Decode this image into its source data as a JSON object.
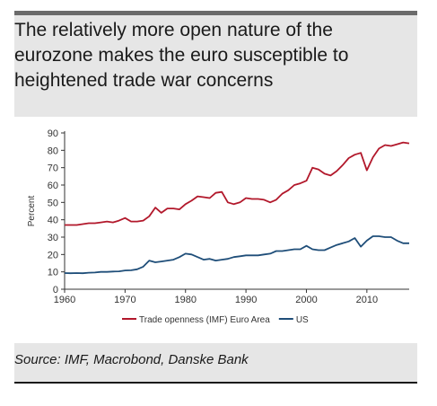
{
  "title": "The relatively more open nature of the eurozone makes the euro susceptible to heightened trade war concerns",
  "source": "Source: IMF, Macrobond, Danske Bank",
  "colors": {
    "euro_area": "#b2182b",
    "us": "#1f4e79",
    "panel": "#e6e6e6"
  },
  "chart_data": {
    "type": "line",
    "title": "",
    "xlabel": "",
    "ylabel": "Percent",
    "xlim": [
      1960,
      2017
    ],
    "ylim": [
      0,
      90
    ],
    "xticks": [
      1960,
      1970,
      1980,
      1990,
      2000,
      2010
    ],
    "yticks": [
      0,
      10,
      20,
      30,
      40,
      50,
      60,
      70,
      80,
      90
    ],
    "grid": false,
    "legend_position": "bottom",
    "series": [
      {
        "name": "Trade openness (IMF) Euro Area",
        "color": "#b2182b",
        "x": [
          1960,
          1961,
          1962,
          1963,
          1964,
          1965,
          1966,
          1967,
          1968,
          1969,
          1970,
          1971,
          1972,
          1973,
          1974,
          1975,
          1976,
          1977,
          1978,
          1979,
          1980,
          1981,
          1982,
          1983,
          1984,
          1985,
          1986,
          1987,
          1988,
          1989,
          1990,
          1991,
          1992,
          1993,
          1994,
          1995,
          1996,
          1997,
          1998,
          1999,
          2000,
          2001,
          2002,
          2003,
          2004,
          2005,
          2006,
          2007,
          2008,
          2009,
          2010,
          2011,
          2012,
          2013,
          2014,
          2015,
          2016,
          2017
        ],
        "y": [
          37,
          37,
          37,
          37.5,
          38,
          38,
          38.5,
          39,
          38.5,
          39.5,
          41,
          39,
          39,
          39.5,
          42,
          47,
          44,
          46.5,
          46.5,
          46,
          49,
          51,
          53.5,
          53,
          52.5,
          55.5,
          56,
          50,
          49,
          50,
          52.5,
          52,
          52,
          51.5,
          50,
          51.5,
          55,
          57,
          60,
          61,
          62.5,
          70,
          69,
          66.5,
          65.5,
          68,
          71.5,
          75.5,
          77.5,
          78.5,
          68.5,
          76,
          81,
          83,
          82.5,
          83.5,
          84.5,
          84
        ]
      },
      {
        "name": "US",
        "color": "#1f4e79",
        "x": [
          1960,
          1961,
          1962,
          1963,
          1964,
          1965,
          1966,
          1967,
          1968,
          1969,
          1970,
          1971,
          1972,
          1973,
          1974,
          1975,
          1976,
          1977,
          1978,
          1979,
          1980,
          1981,
          1982,
          1983,
          1984,
          1985,
          1986,
          1987,
          1988,
          1989,
          1990,
          1991,
          1992,
          1993,
          1994,
          1995,
          1996,
          1997,
          1998,
          1999,
          2000,
          2001,
          2002,
          2003,
          2004,
          2005,
          2006,
          2007,
          2008,
          2009,
          2010,
          2011,
          2012,
          2013,
          2014,
          2015,
          2016,
          2017
        ],
        "y": [
          9.3,
          9.2,
          9.3,
          9.2,
          9.5,
          9.6,
          10,
          10,
          10.2,
          10.3,
          10.8,
          10.9,
          11.5,
          13,
          16.5,
          15.5,
          16,
          16.5,
          17,
          18.5,
          20.5,
          20,
          18.5,
          17,
          17.5,
          16.5,
          17,
          17.5,
          18.5,
          19,
          19.5,
          19.5,
          19.5,
          20,
          20.5,
          22,
          22,
          22.5,
          23,
          23,
          25,
          23,
          22.5,
          22.5,
          24,
          25.5,
          26.5,
          27.5,
          29.5,
          24.5,
          28,
          30.5,
          30.5,
          30,
          30,
          28,
          26.5,
          26.5
        ]
      }
    ]
  }
}
